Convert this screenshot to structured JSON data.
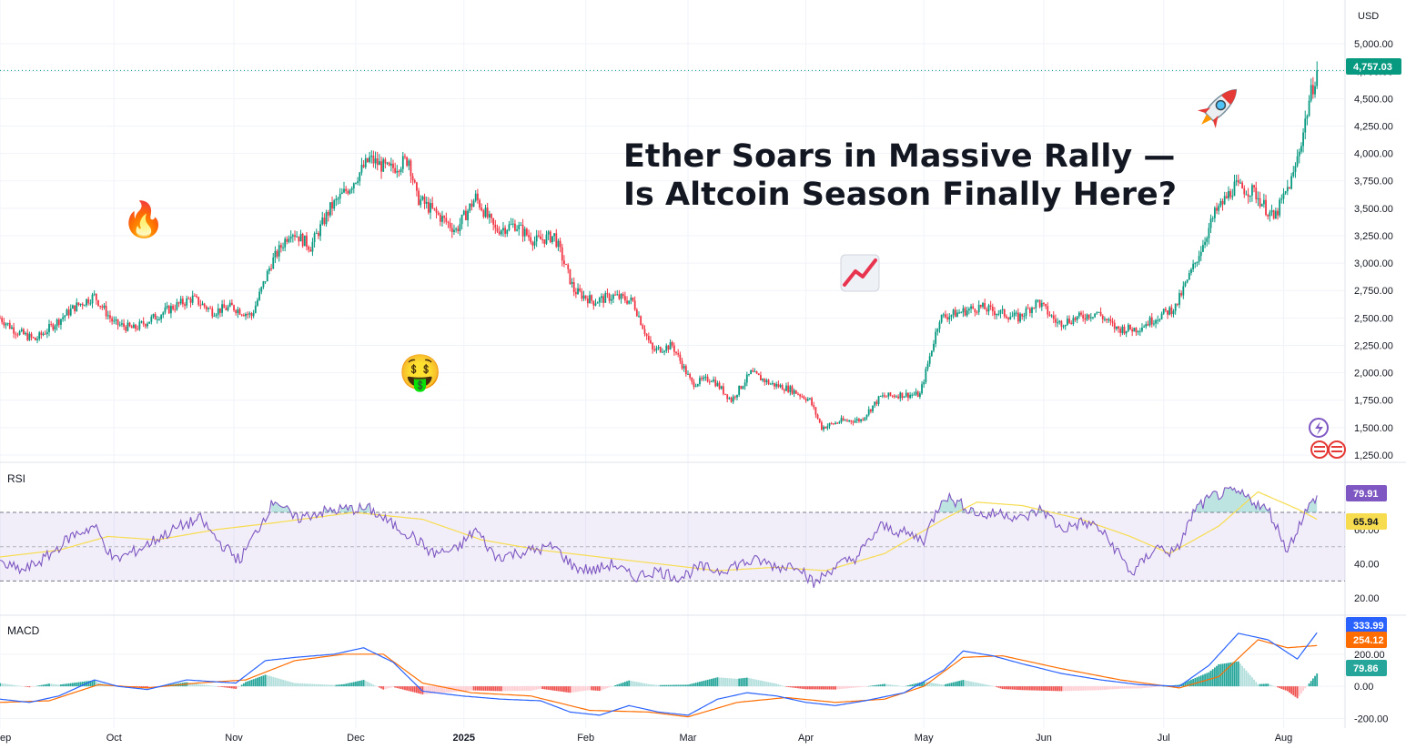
{
  "chart_data": {
    "type": "candlestick",
    "title_lines": [
      "Ether Soars in Massive Rally —",
      "Is Altcoin Season Finally Here?"
    ],
    "currency": "USD",
    "x_labels": [
      "ep",
      "Oct",
      "Nov",
      "Dec",
      "2025",
      "Feb",
      "Mar",
      "Apr",
      "May",
      "Jun",
      "Jul",
      "Aug"
    ],
    "price": {
      "ylim": [
        1150,
        5300
      ],
      "ticks": [
        "5,000.00",
        "4,750.00",
        "4,500.00",
        "4,250.00",
        "4,000.00",
        "3,750.00",
        "3,500.00",
        "3,250.00",
        "3,000.00",
        "2,750.00",
        "2,500.00",
        "2,250.00",
        "2,000.00",
        "1,750.00",
        "1,500.00",
        "1,250.00"
      ],
      "tick_values": [
        5000,
        4750,
        4500,
        4250,
        4000,
        3750,
        3500,
        3250,
        3000,
        2750,
        2500,
        2250,
        2000,
        1750,
        1500,
        1250
      ],
      "last_price": 4757.03,
      "last_label": "4,757.03",
      "anchors": [
        [
          0,
          2500
        ],
        [
          8,
          2380
        ],
        [
          18,
          2300
        ],
        [
          28,
          2450
        ],
        [
          38,
          2600
        ],
        [
          48,
          2700
        ],
        [
          58,
          2450
        ],
        [
          68,
          2400
        ],
        [
          78,
          2500
        ],
        [
          88,
          2600
        ],
        [
          98,
          2680
        ],
        [
          108,
          2560
        ],
        [
          118,
          2600
        ],
        [
          128,
          2520
        ],
        [
          138,
          3000
        ],
        [
          148,
          3300
        ],
        [
          158,
          3150
        ],
        [
          168,
          3500
        ],
        [
          178,
          3700
        ],
        [
          188,
          3950
        ],
        [
          198,
          3850
        ],
        [
          208,
          3950
        ],
        [
          212,
          3600
        ],
        [
          222,
          3450
        ],
        [
          232,
          3300
        ],
        [
          242,
          3600
        ],
        [
          252,
          3300
        ],
        [
          262,
          3350
        ],
        [
          272,
          3200
        ],
        [
          282,
          3250
        ],
        [
          292,
          2750
        ],
        [
          302,
          2650
        ],
        [
          312,
          2700
        ],
        [
          322,
          2650
        ],
        [
          332,
          2200
        ],
        [
          342,
          2250
        ],
        [
          352,
          1900
        ],
        [
          362,
          1950
        ],
        [
          372,
          1750
        ],
        [
          382,
          2000
        ],
        [
          392,
          1900
        ],
        [
          402,
          1850
        ],
        [
          412,
          1750
        ],
        [
          418,
          1500
        ],
        [
          428,
          1560
        ],
        [
          438,
          1570
        ],
        [
          448,
          1780
        ],
        [
          458,
          1800
        ],
        [
          468,
          1800
        ],
        [
          478,
          2500
        ],
        [
          488,
          2550
        ],
        [
          498,
          2600
        ],
        [
          508,
          2550
        ],
        [
          518,
          2500
        ],
        [
          528,
          2650
        ],
        [
          538,
          2450
        ],
        [
          548,
          2500
        ],
        [
          558,
          2550
        ],
        [
          568,
          2400
        ],
        [
          578,
          2400
        ],
        [
          588,
          2500
        ],
        [
          598,
          2600
        ],
        [
          608,
          3000
        ],
        [
          618,
          3450
        ],
        [
          628,
          3700
        ],
        [
          638,
          3650
        ],
        [
          648,
          3400
        ],
        [
          658,
          3800
        ],
        [
          663,
          4200
        ],
        [
          666,
          4480
        ],
        [
          670,
          4757
        ]
      ],
      "emoji_annotations": [
        "🔥",
        "🤑",
        "📈",
        "🚀"
      ]
    },
    "rsi": {
      "label": "RSI",
      "ylim": [
        10,
        95
      ],
      "ticks": [
        "60.00",
        "40.00",
        "20.00"
      ],
      "tick_values": [
        60,
        40,
        20
      ],
      "bands": [
        30,
        50,
        70
      ],
      "value": 79.91,
      "value_label": "79.91",
      "ma_value": 65.94,
      "ma_label": "65.94",
      "series_colors": {
        "rsi": "#7e57c2",
        "ma": "#f7dc4f"
      },
      "rsi_anchors": [
        [
          0,
          40
        ],
        [
          12,
          36
        ],
        [
          24,
          44
        ],
        [
          36,
          56
        ],
        [
          48,
          62
        ],
        [
          58,
          42
        ],
        [
          70,
          48
        ],
        [
          82,
          56
        ],
        [
          92,
          62
        ],
        [
          102,
          66
        ],
        [
          112,
          52
        ],
        [
          122,
          42
        ],
        [
          132,
          62
        ],
        [
          140,
          78
        ],
        [
          150,
          66
        ],
        [
          162,
          70
        ],
        [
          176,
          72
        ],
        [
          188,
          72
        ],
        [
          198,
          64
        ],
        [
          210,
          56
        ],
        [
          220,
          46
        ],
        [
          232,
          48
        ],
        [
          242,
          60
        ],
        [
          252,
          44
        ],
        [
          262,
          46
        ],
        [
          272,
          48
        ],
        [
          282,
          50
        ],
        [
          292,
          38
        ],
        [
          302,
          36
        ],
        [
          312,
          40
        ],
        [
          322,
          32
        ],
        [
          334,
          36
        ],
        [
          346,
          32
        ],
        [
          356,
          38
        ],
        [
          366,
          36
        ],
        [
          376,
          40
        ],
        [
          386,
          42
        ],
        [
          396,
          38
        ],
        [
          406,
          40
        ],
        [
          414,
          28
        ],
        [
          424,
          38
        ],
        [
          436,
          44
        ],
        [
          448,
          62
        ],
        [
          460,
          58
        ],
        [
          470,
          54
        ],
        [
          480,
          80
        ],
        [
          490,
          74
        ],
        [
          500,
          68
        ],
        [
          510,
          70
        ],
        [
          520,
          66
        ],
        [
          530,
          72
        ],
        [
          540,
          60
        ],
        [
          550,
          64
        ],
        [
          558,
          62
        ],
        [
          568,
          48
        ],
        [
          576,
          34
        ],
        [
          588,
          50
        ],
        [
          598,
          46
        ],
        [
          608,
          72
        ],
        [
          618,
          80
        ],
        [
          628,
          82
        ],
        [
          636,
          78
        ],
        [
          646,
          70
        ],
        [
          655,
          48
        ],
        [
          663,
          68
        ],
        [
          670,
          80
        ]
      ],
      "ma_anchors": [
        [
          0,
          44
        ],
        [
          30,
          48
        ],
        [
          55,
          56
        ],
        [
          80,
          54
        ],
        [
          110,
          60
        ],
        [
          140,
          64
        ],
        [
          180,
          70
        ],
        [
          215,
          66
        ],
        [
          245,
          54
        ],
        [
          275,
          48
        ],
        [
          305,
          44
        ],
        [
          335,
          40
        ],
        [
          365,
          36
        ],
        [
          395,
          38
        ],
        [
          420,
          36
        ],
        [
          450,
          46
        ],
        [
          480,
          66
        ],
        [
          497,
          76
        ],
        [
          520,
          74
        ],
        [
          550,
          66
        ],
        [
          575,
          56
        ],
        [
          595,
          46
        ],
        [
          620,
          62
        ],
        [
          640,
          82
        ],
        [
          660,
          72
        ],
        [
          670,
          66
        ]
      ]
    },
    "macd": {
      "label": "MACD",
      "ylim": [
        -260,
        420
      ],
      "ticks": [
        "200.00",
        "0.00",
        "-200.00"
      ],
      "tick_values": [
        200,
        0,
        -200
      ],
      "macd_value": 333.99,
      "macd_label": "333.99",
      "signal_value": 254.12,
      "signal_label": "254.12",
      "hist_value": 79.86,
      "hist_label": "79.86",
      "series_colors": {
        "macd": "#2962ff",
        "signal": "#ff6d00",
        "hist_up": "#26a69a",
        "hist_down": "#ef5350"
      },
      "macd_anchors": [
        [
          0,
          -80
        ],
        [
          15,
          -100
        ],
        [
          30,
          -60
        ],
        [
          48,
          40
        ],
        [
          60,
          0
        ],
        [
          75,
          -20
        ],
        [
          95,
          40
        ],
        [
          120,
          20
        ],
        [
          135,
          160
        ],
        [
          150,
          180
        ],
        [
          170,
          200
        ],
        [
          185,
          240
        ],
        [
          200,
          150
        ],
        [
          215,
          -30
        ],
        [
          235,
          -60
        ],
        [
          255,
          -80
        ],
        [
          275,
          -90
        ],
        [
          290,
          -160
        ],
        [
          305,
          -180
        ],
        [
          320,
          -120
        ],
        [
          335,
          -160
        ],
        [
          350,
          -180
        ],
        [
          365,
          -80
        ],
        [
          380,
          -40
        ],
        [
          395,
          -60
        ],
        [
          410,
          -100
        ],
        [
          425,
          -120
        ],
        [
          440,
          -90
        ],
        [
          460,
          -40
        ],
        [
          480,
          100
        ],
        [
          490,
          220
        ],
        [
          505,
          190
        ],
        [
          520,
          140
        ],
        [
          540,
          80
        ],
        [
          560,
          40
        ],
        [
          580,
          10
        ],
        [
          600,
          0
        ],
        [
          615,
          130
        ],
        [
          630,
          330
        ],
        [
          645,
          290
        ],
        [
          660,
          170
        ],
        [
          670,
          334
        ]
      ],
      "signal_anchors": [
        [
          0,
          -100
        ],
        [
          25,
          -90
        ],
        [
          50,
          10
        ],
        [
          75,
          -10
        ],
        [
          100,
          20
        ],
        [
          125,
          40
        ],
        [
          150,
          160
        ],
        [
          175,
          200
        ],
        [
          195,
          200
        ],
        [
          215,
          20
        ],
        [
          240,
          -40
        ],
        [
          270,
          -60
        ],
        [
          300,
          -150
        ],
        [
          330,
          -160
        ],
        [
          350,
          -190
        ],
        [
          375,
          -100
        ],
        [
          400,
          -70
        ],
        [
          425,
          -100
        ],
        [
          450,
          -80
        ],
        [
          470,
          0
        ],
        [
          490,
          180
        ],
        [
          510,
          190
        ],
        [
          540,
          110
        ],
        [
          570,
          40
        ],
        [
          600,
          -10
        ],
        [
          620,
          60
        ],
        [
          640,
          290
        ],
        [
          655,
          240
        ],
        [
          670,
          254
        ]
      ]
    }
  }
}
